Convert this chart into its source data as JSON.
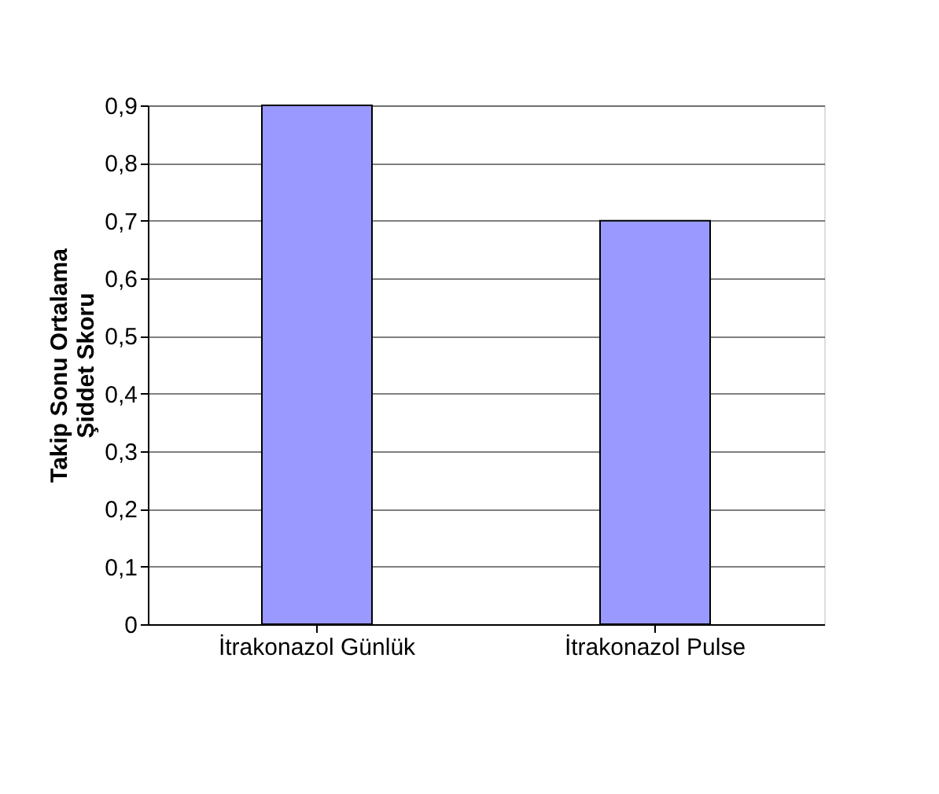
{
  "chart_data": {
    "type": "bar",
    "ylabel": "Takip Sonu Ortalama\nŞiddet Skoru",
    "categories": [
      "İtrakonazol Günlük",
      "İtrakonazol Pulse"
    ],
    "values": [
      0.9,
      0.7
    ],
    "color": "#9999ff",
    "ylim": [
      0,
      0.9
    ],
    "yticks": [
      0,
      {
        "value": 0.1,
        "label": "0,1"
      },
      {
        "value": 0.2,
        "label": "0,2"
      },
      {
        "value": 0.3,
        "label": "0,3"
      },
      {
        "value": 0.4,
        "label": "0,4"
      },
      {
        "value": 0.5,
        "label": "0,5"
      },
      {
        "value": 0.6,
        "label": "0,6"
      },
      {
        "value": 0.7,
        "label": "0,7"
      },
      {
        "value": 0.8,
        "label": "0,8"
      },
      {
        "value": 0.9,
        "label": "0,9"
      }
    ],
    "grid": "y"
  }
}
